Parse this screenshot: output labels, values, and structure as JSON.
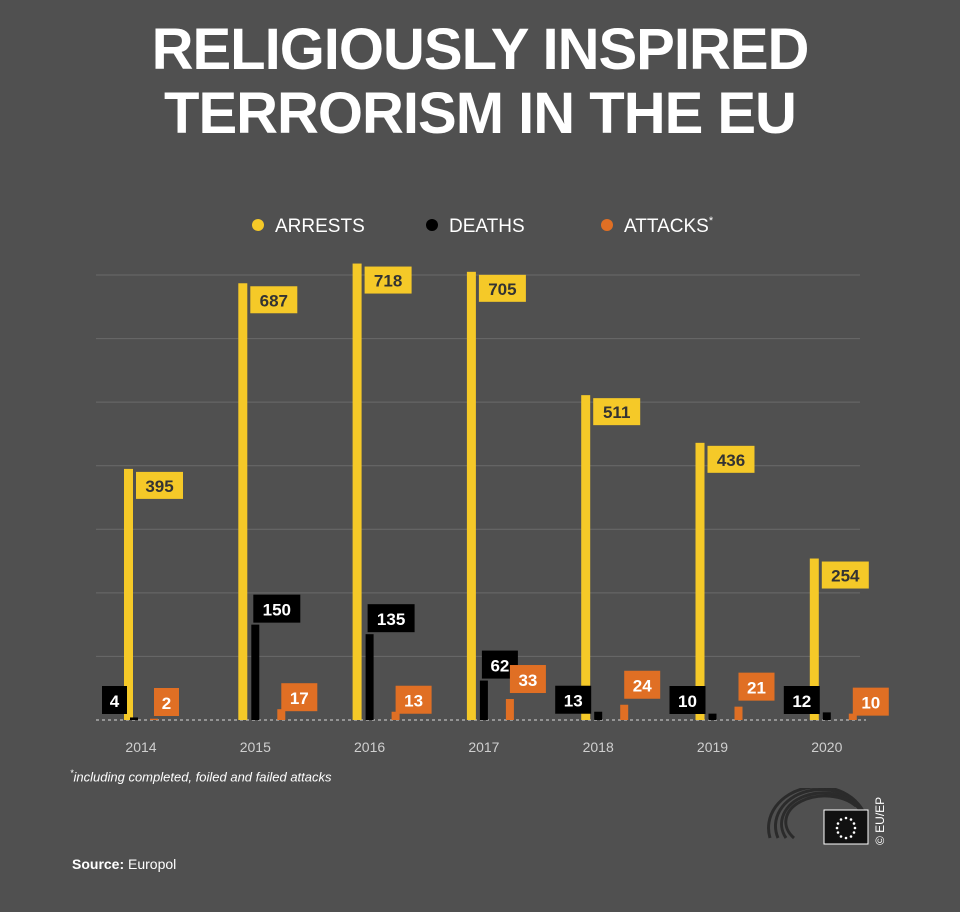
{
  "title_lines": [
    "RELIGIOUSLY INSPIRED",
    "TERRORISM IN THE EU"
  ],
  "footnote_marker": "*",
  "footnote_text": "including completed, foiled and failed attacks",
  "source_label": "Source:",
  "source_value": "Europol",
  "credit": "© EU/EP",
  "colors": {
    "background": "#505050",
    "arrests": "#f5c928",
    "deaths": "#000000",
    "attacks": "#e06f24",
    "grid": "#6a6a6a",
    "text": "#ffffff",
    "axis_label": "#cfcfcf"
  },
  "chart_data": {
    "type": "bar",
    "title": "RELIGIOUSLY INSPIRED TERRORISM IN THE EU",
    "categories": [
      "2014",
      "2015",
      "2016",
      "2017",
      "2018",
      "2019",
      "2020"
    ],
    "series": [
      {
        "name": "ARRESTS",
        "legend_suffix": "",
        "values": [
          395,
          687,
          718,
          705,
          511,
          436,
          254
        ]
      },
      {
        "name": "DEATHS",
        "legend_suffix": "",
        "values": [
          4,
          150,
          135,
          62,
          13,
          10,
          12
        ]
      },
      {
        "name": "ATTACKS",
        "legend_suffix": "*",
        "values": [
          2,
          17,
          13,
          33,
          24,
          21,
          10
        ]
      }
    ],
    "ylim": [
      0,
      700
    ],
    "grid": true,
    "legend": "top-center",
    "xlabel": "",
    "ylabel": ""
  }
}
